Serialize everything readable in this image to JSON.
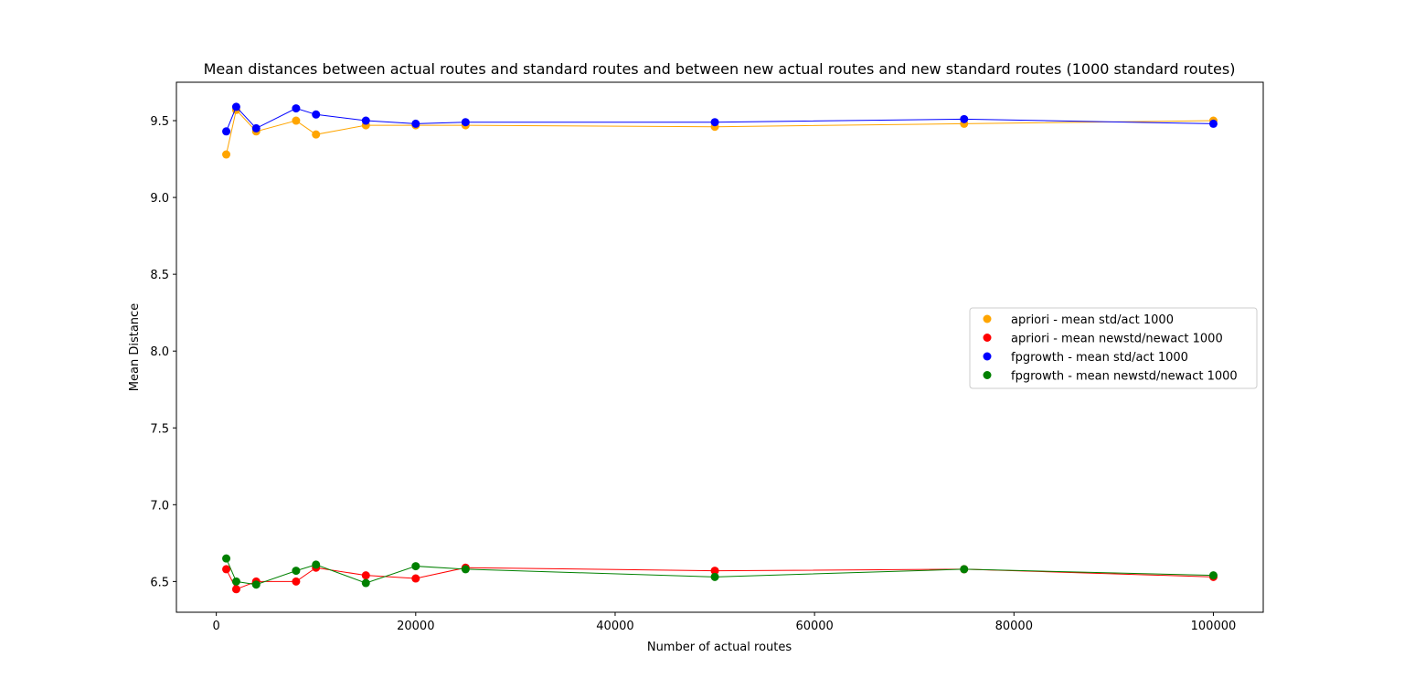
{
  "chart_data": {
    "type": "line",
    "title": "Mean distances between actual routes and standard routes and between new actual routes and new standard routes (1000 standard routes)",
    "xlabel": "Number of actual routes",
    "ylabel": "Mean Distance",
    "xlim": [
      -4000,
      105000
    ],
    "ylim": [
      6.3,
      9.75
    ],
    "xticks": [
      0,
      20000,
      40000,
      60000,
      80000,
      100000
    ],
    "xtick_labels": [
      "0",
      "20000",
      "40000",
      "60000",
      "80000",
      "100000"
    ],
    "yticks": [
      6.5,
      7.0,
      7.5,
      8.0,
      8.5,
      9.0,
      9.5
    ],
    "ytick_labels": [
      "6.5",
      "7.0",
      "7.5",
      "8.0",
      "8.5",
      "9.0",
      "9.5"
    ],
    "grid": false,
    "legend_position": "center-right",
    "x": [
      1000,
      2000,
      4000,
      8000,
      10000,
      15000,
      20000,
      25000,
      50000,
      75000,
      100000
    ],
    "series": [
      {
        "name": "apriori - mean std/act 1000",
        "color": "#ffa500",
        "values": [
          9.28,
          9.57,
          9.43,
          9.5,
          9.41,
          9.47,
          9.47,
          9.47,
          9.46,
          9.48,
          9.5
        ]
      },
      {
        "name": "apriori - mean newstd/newact 1000",
        "color": "#ff0000",
        "values": [
          6.58,
          6.45,
          6.5,
          6.5,
          6.59,
          6.54,
          6.52,
          6.59,
          6.57,
          6.58,
          6.53
        ]
      },
      {
        "name": "fpgrowth - mean std/act 1000",
        "color": "#0000ff",
        "values": [
          9.43,
          9.59,
          9.45,
          9.58,
          9.54,
          9.5,
          9.48,
          9.49,
          9.49,
          9.51,
          9.48
        ]
      },
      {
        "name": "fpgrowth - mean newstd/newact 1000",
        "color": "#008000",
        "values": [
          6.65,
          6.5,
          6.48,
          6.57,
          6.61,
          6.49,
          6.6,
          6.58,
          6.53,
          6.58,
          6.54
        ]
      }
    ]
  }
}
